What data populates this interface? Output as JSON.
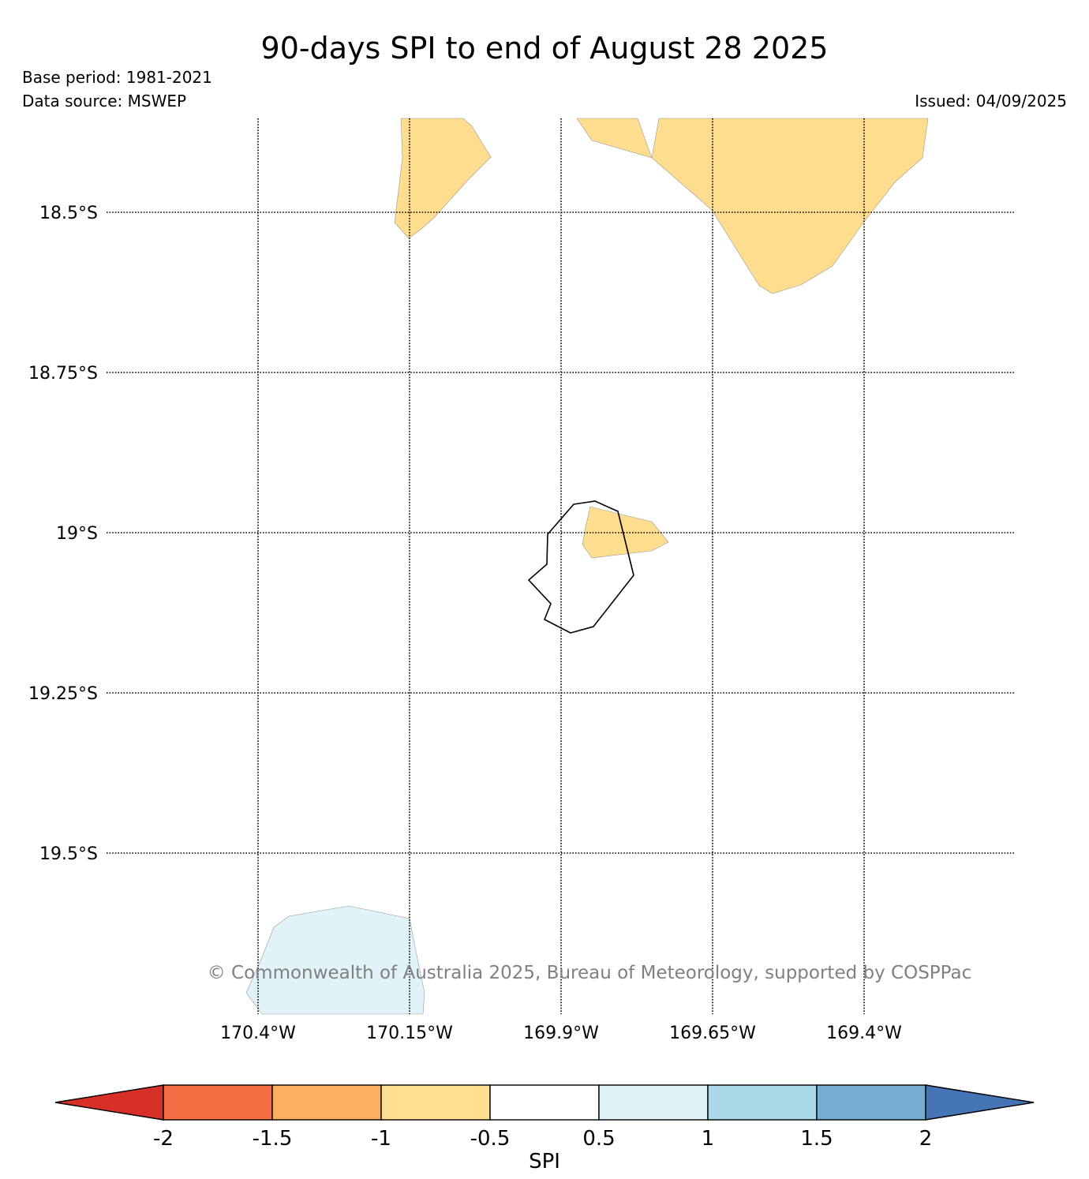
{
  "header": {
    "title": "90-days SPI to end of August 28 2025",
    "base_period": "Base period: 1981-2021",
    "data_source": "Data source: MSWEP",
    "issued": "Issued: 04/09/2025"
  },
  "map": {
    "latitude_labels": [
      "18.5°S",
      "18.75°S",
      "19°S",
      "19.25°S",
      "19.5°S"
    ],
    "longitude_labels": [
      "170.4°W",
      "170.15°W",
      "169.9°W",
      "169.65°W",
      "169.4°W"
    ],
    "copyright": "© Commonwealth of Australia 2025, Bureau of Meteorology, supported by COSPPac",
    "gridlines": "dotted",
    "coastline": "Niue",
    "spi_regions": [
      {
        "category": "-1 to -0.5",
        "color": "#fedd8e",
        "location": "north (two areas)"
      },
      {
        "category": "-1 to -0.5",
        "color": "#fedd8e",
        "location": "east side of island"
      },
      {
        "category": "0.5 to 1",
        "color": "#e0f3f8",
        "location": "south-west"
      }
    ]
  },
  "colorbar": {
    "label": "SPI",
    "ticks": [
      "-2",
      "-1.5",
      "-1",
      "-0.5",
      "0.5",
      "1",
      "1.5",
      "2"
    ],
    "colors": [
      "#d73027",
      "#f46d43",
      "#fdae61",
      "#fee090",
      "#ffffff",
      "#e0f3f8",
      "#abd9e9",
      "#74add1",
      "#4575b4"
    ]
  }
}
